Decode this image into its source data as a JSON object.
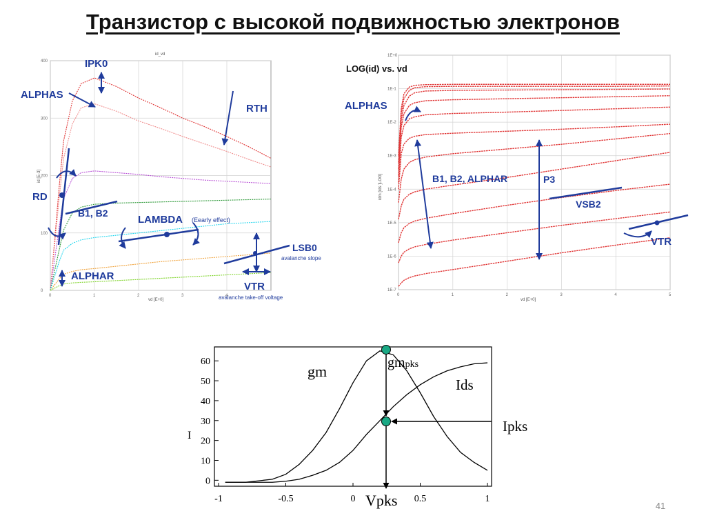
{
  "slide": {
    "title": "Транзистор с высокой подвижностью электронов",
    "page_number": "41"
  },
  "colors": {
    "param_text": "#1f3b9c",
    "curve_red": "#e03434",
    "curve_pink": "#f08e8e",
    "curve_purple": "#b84fd6",
    "curve_green": "#2f9a3a",
    "curve_cyan": "#22d6ee",
    "curve_orange": "#f0a23a",
    "curve_lime": "#7fd42a",
    "grid": "#d2d2d2",
    "node_fill": "#1aa884"
  },
  "chart_data": [
    {
      "type": "line",
      "panel": "left",
      "header": "id_vd",
      "xlabel": "vd [E+0]",
      "ylabel": "id [E-3]",
      "x_ticks": [
        "0",
        "1",
        "2",
        "3",
        "4"
      ],
      "y_ticks": [
        "0",
        "100",
        "200",
        "300",
        "400"
      ],
      "xlim": [
        0,
        5
      ],
      "ylim": [
        0,
        400
      ],
      "grid": true,
      "x": [
        0,
        0.1,
        0.2,
        0.3,
        0.5,
        0.7,
        1.0,
        1.5,
        2.0,
        2.5,
        3.0,
        3.5,
        4.0,
        4.5,
        5.0
      ],
      "series": [
        {
          "color": "curve_red",
          "values": [
            0,
            90,
            180,
            260,
            330,
            360,
            370,
            355,
            335,
            318,
            300,
            285,
            268,
            250,
            230
          ]
        },
        {
          "color": "curve_pink",
          "values": [
            0,
            80,
            160,
            230,
            290,
            318,
            325,
            312,
            295,
            282,
            268,
            255,
            242,
            228,
            215
          ]
        },
        {
          "color": "curve_purple",
          "values": [
            0,
            55,
            110,
            160,
            195,
            205,
            208,
            205,
            202,
            198,
            195,
            192,
            190,
            188,
            186
          ]
        },
        {
          "color": "curve_green",
          "values": [
            0,
            35,
            70,
            105,
            135,
            145,
            150,
            152,
            153,
            154,
            155,
            156,
            157,
            158,
            159
          ]
        },
        {
          "color": "curve_cyan",
          "values": [
            0,
            25,
            50,
            70,
            82,
            88,
            92,
            96,
            100,
            104,
            108,
            112,
            116,
            118,
            120
          ]
        },
        {
          "color": "curve_orange",
          "values": [
            0,
            10,
            20,
            28,
            33,
            36,
            38,
            42,
            46,
            50,
            53,
            56,
            59,
            62,
            65
          ]
        },
        {
          "color": "curve_lime",
          "values": [
            0,
            4,
            8,
            11,
            13,
            14,
            15,
            17,
            19,
            21,
            23,
            25,
            27,
            29,
            31
          ]
        }
      ],
      "annotations": [
        "IPK0",
        "ALPHAS",
        "RTH",
        "RD",
        "B1, B2",
        "LAMBDA",
        "(Eearly effect)",
        "LSB0",
        "avalanche slope",
        "ALPHAR",
        "VTR",
        "avalanche take-off voltage"
      ]
    },
    {
      "type": "line",
      "panel": "right",
      "title": "LOG(id) vs. vd",
      "xlabel": "vd [E+0]",
      "ylabel": "idm [ids ]LOG]",
      "x_ticks": [
        "0",
        "1",
        "2",
        "3",
        "4",
        "5"
      ],
      "y_ticks": [
        "1E+0",
        "1E-1",
        "1E-2",
        "1E-3",
        "1E-4",
        "1E-5",
        "1E-6",
        "1E-7"
      ],
      "xlim": [
        0,
        5
      ],
      "log_y": true,
      "ylim_exponent": [
        -7,
        0
      ],
      "grid": true,
      "x": [
        0,
        0.05,
        0.1,
        0.2,
        0.3,
        0.5,
        1,
        2,
        3,
        4,
        5
      ],
      "series_log10": [
        [
          -3.0,
          -1.6,
          -1.15,
          -0.95,
          -0.9,
          -0.88,
          -0.87,
          -0.87,
          -0.87,
          -0.87,
          -0.87
        ],
        [
          -3.2,
          -1.75,
          -1.3,
          -1.05,
          -0.97,
          -0.94,
          -0.93,
          -0.93,
          -0.93,
          -0.93,
          -0.92
        ],
        [
          -3.4,
          -1.95,
          -1.5,
          -1.22,
          -1.12,
          -1.07,
          -1.05,
          -1.04,
          -1.03,
          -1.02,
          -1.01
        ],
        [
          -3.6,
          -2.15,
          -1.75,
          -1.5,
          -1.42,
          -1.36,
          -1.33,
          -1.3,
          -1.27,
          -1.24,
          -1.21
        ],
        [
          -3.8,
          -2.45,
          -2.1,
          -1.9,
          -1.84,
          -1.78,
          -1.74,
          -1.7,
          -1.65,
          -1.6,
          -1.55
        ],
        [
          -4.0,
          -2.95,
          -2.65,
          -2.48,
          -2.42,
          -2.37,
          -2.33,
          -2.27,
          -2.21,
          -2.14,
          -2.06
        ],
        [
          -4.4,
          -3.7,
          -3.4,
          -3.2,
          -3.12,
          -3.04,
          -2.94,
          -2.8,
          -2.66,
          -2.5,
          -2.34
        ],
        [
          -4.9,
          -4.5,
          -4.3,
          -4.15,
          -4.08,
          -4.0,
          -3.88,
          -3.65,
          -3.4,
          -3.15,
          -2.9
        ],
        [
          -5.6,
          -5.3,
          -5.15,
          -5.02,
          -4.95,
          -4.87,
          -4.73,
          -4.48,
          -4.25,
          -4.04,
          -3.85
        ],
        [
          -6.2,
          -6.0,
          -5.88,
          -5.78,
          -5.72,
          -5.65,
          -5.52,
          -5.3,
          -5.08,
          -4.88,
          -4.68
        ],
        [
          -6.9,
          -6.8,
          -6.72,
          -6.64,
          -6.59,
          -6.52,
          -6.4,
          -6.15,
          -5.9,
          -5.67,
          -5.45
        ]
      ],
      "annotations": [
        "ALPHAS",
        "B1, B2, ALPHAR",
        "P3",
        "VSB2",
        "VTR"
      ]
    },
    {
      "type": "line",
      "panel": "bottom",
      "ylabel": "I",
      "x_ticks": [
        "-1",
        "-0.5",
        "0",
        "0.5",
        "1"
      ],
      "y_ticks": [
        "0",
        "10",
        "20",
        "30",
        "40",
        "50",
        "60"
      ],
      "xlim": [
        -1,
        1
      ],
      "ylim": [
        -3,
        67
      ],
      "grid": false,
      "x": [
        -0.95,
        -0.8,
        -0.6,
        -0.5,
        -0.4,
        -0.3,
        -0.2,
        -0.1,
        0.0,
        0.1,
        0.2,
        0.3,
        0.4,
        0.5,
        0.6,
        0.7,
        0.8,
        0.9,
        1.0
      ],
      "series": [
        {
          "name": "gm",
          "values": [
            -1,
            -1,
            0.5,
            3,
            8,
            15,
            24,
            36,
            49,
            60,
            65,
            63,
            55,
            44,
            32,
            22,
            14,
            9,
            5
          ]
        },
        {
          "name": "Ids",
          "values": [
            -1,
            -1,
            -1,
            -0.5,
            0.5,
            2.5,
            5,
            9,
            15,
            23,
            30,
            37,
            43,
            48,
            52,
            55,
            57,
            58.5,
            59
          ]
        }
      ],
      "markers": [
        {
          "label": "gmpks",
          "x": 0.2,
          "y": 65
        },
        {
          "label": "Ipks",
          "x": 0.2,
          "y": 30
        }
      ],
      "annotations": [
        "gm",
        "gm",
        "pks",
        "Ids",
        "Ipks",
        "Vpks",
        "I"
      ]
    }
  ]
}
